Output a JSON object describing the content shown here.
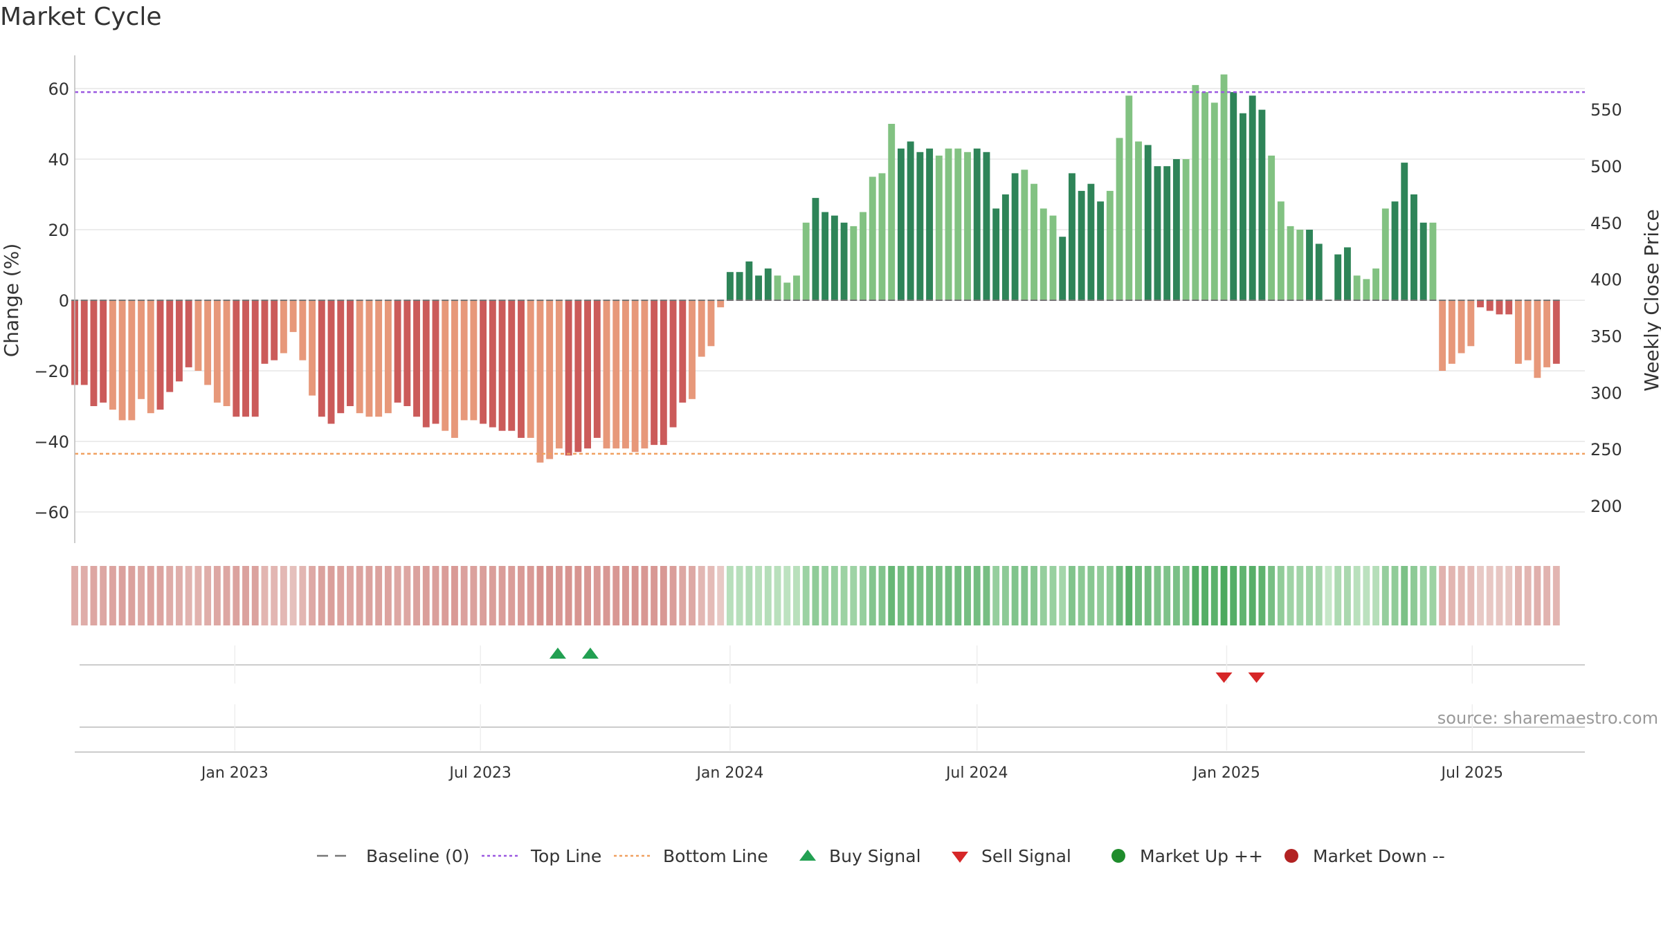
{
  "title": "Market Cycle",
  "source": "source: sharemaestro.com",
  "colors": {
    "neg_dark": "#cb5b5a",
    "neg_light": "#e7987a",
    "pos_dark": "#2e8458",
    "pos_light": "#82c282",
    "top_line": "#9b58e0",
    "bottom_line": "#f0a060",
    "buy": "#22a052",
    "sell": "#d62728",
    "market_up": "#1f8c2c",
    "market_down": "#b22222",
    "baseline": "#777777",
    "grid": "#e6e6e6",
    "axis_text": "#333333"
  },
  "chart_data": {
    "type": "bar",
    "title": "Market Cycle",
    "ylabel": "Change (%)",
    "y2label": "Weekly Close Price",
    "ylim": [
      -69,
      70
    ],
    "yticks": [
      -60,
      -40,
      -20,
      0,
      20,
      40,
      60
    ],
    "y2ticks": [
      200,
      250,
      300,
      350,
      400,
      450,
      500,
      550
    ],
    "y2lim": [
      175,
      607
    ],
    "xlim": [
      "2022-09-05",
      "2025-09-22"
    ],
    "xticks": [
      {
        "label": "Jan 2023",
        "date": "2023-01-01"
      },
      {
        "label": "Jul 2023",
        "date": "2023-07-01"
      },
      {
        "label": "Jan 2024",
        "date": "2024-01-01"
      },
      {
        "label": "Jul 2024",
        "date": "2024-07-01"
      },
      {
        "label": "Jan 2025",
        "date": "2025-01-01"
      },
      {
        "label": "Jul 2025",
        "date": "2025-07-01"
      }
    ],
    "start_date": "2022-09-05",
    "interval_days": 7,
    "series": [
      {
        "values": [
          -24,
          -24,
          -30,
          -29,
          -31,
          -34,
          -34,
          -28,
          -32,
          -31,
          -26,
          -23,
          -19,
          -20,
          -24,
          -29,
          -30,
          -33,
          -33,
          -33,
          -18,
          -17,
          -15,
          -9,
          -17,
          -27,
          -33,
          -35,
          -32,
          -30,
          -32,
          -33,
          -33,
          -32,
          -29,
          -30,
          -33,
          -36,
          -35,
          -37,
          -39,
          -34,
          -34,
          -35,
          -36,
          -37,
          -37,
          -39,
          -39,
          -46,
          -45,
          -42,
          -44,
          -43,
          -42,
          -39,
          -42,
          -42,
          -42,
          -43,
          -42,
          -41,
          -41,
          -36,
          -29,
          -28,
          -16,
          -13,
          -2,
          8,
          8,
          11,
          7,
          9,
          7,
          5,
          7,
          22,
          29,
          25,
          24,
          22,
          21,
          25,
          35,
          36,
          50,
          43,
          45,
          42,
          43,
          41,
          43,
          43,
          42,
          43,
          42,
          26,
          30,
          36,
          37,
          33,
          26,
          24,
          18,
          36,
          31,
          33,
          28,
          31,
          46,
          58,
          45,
          44,
          38,
          38,
          40,
          40,
          61,
          59,
          56,
          64,
          59,
          53,
          58,
          54,
          41,
          28,
          21,
          20,
          20,
          16,
          0,
          13,
          15,
          7,
          6,
          9,
          26,
          28,
          39,
          30,
          22,
          22,
          -20,
          -18,
          -15,
          -13,
          -2,
          -3,
          -4,
          -4,
          -18,
          -17,
          -22,
          -19,
          -18
        ]
      }
    ],
    "reference_lines": [
      {
        "name": "Baseline (0)",
        "value": 0
      },
      {
        "name": "Top Line",
        "value": 59
      },
      {
        "name": "Bottom Line",
        "value": -43.5
      }
    ],
    "buy_signals": [
      "2023-08-27",
      "2023-09-20"
    ],
    "sell_signals": [
      "2024-12-30",
      "2025-01-23"
    ]
  },
  "legend": [
    {
      "label": "Baseline (0)",
      "kind": "dash",
      "color": "#777777"
    },
    {
      "label": "Top Line",
      "kind": "dot",
      "color": "#9b58e0"
    },
    {
      "label": "Bottom Line",
      "kind": "dot",
      "color": "#f0a060"
    },
    {
      "label": "Buy Signal",
      "kind": "tri-up",
      "color": "#22a052"
    },
    {
      "label": "Sell Signal",
      "kind": "tri-down",
      "color": "#d62728"
    },
    {
      "label": "Market Up ++",
      "kind": "circle",
      "color": "#1f8c2c"
    },
    {
      "label": "Market Down --",
      "kind": "circle",
      "color": "#b22222"
    }
  ]
}
